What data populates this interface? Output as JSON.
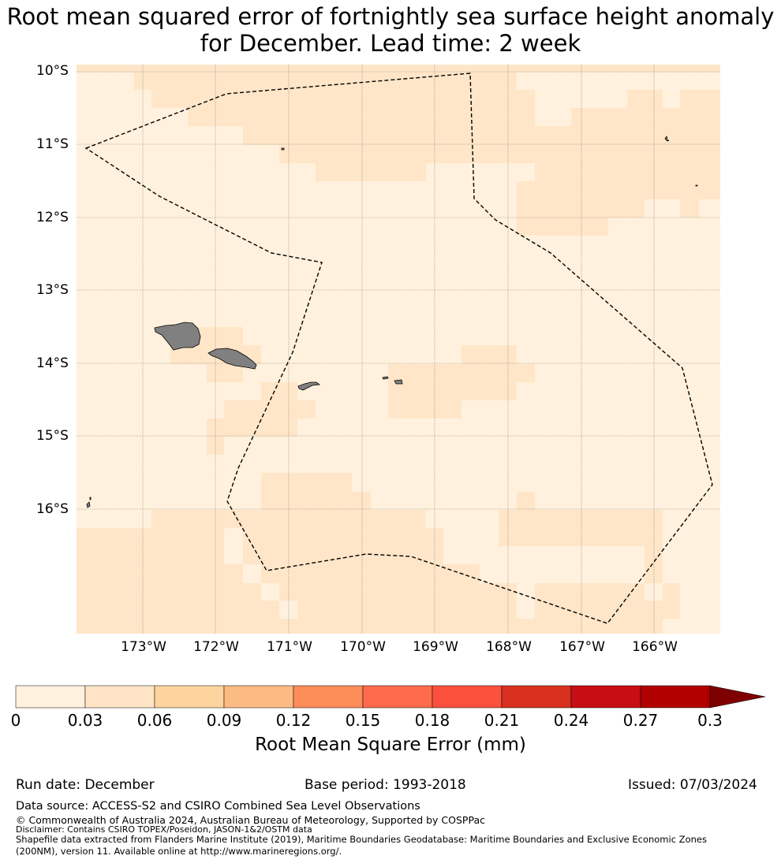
{
  "title": {
    "line1": "Root mean squared error of fortnightly sea surface height anomaly",
    "line2": "for December. Lead time: 2 week"
  },
  "map": {
    "lat_labels": [
      "10°S",
      "11°S",
      "12°S",
      "13°S",
      "14°S",
      "15°S",
      "16°S"
    ],
    "lon_labels": [
      "173°W",
      "172°W",
      "171°W",
      "170°W",
      "169°W",
      "168°W",
      "167°W",
      "166°W"
    ],
    "rmse_field_levels": [
      "0-0.03",
      "0.03-0.06"
    ],
    "islands": [
      "samoa-savaii",
      "samoa-upolu",
      "tutuila",
      "manua",
      "swains",
      "rose-atoll"
    ],
    "eez_boundary": "dashed"
  },
  "colorbar": {
    "ticks": [
      "0",
      "0.03",
      "0.06",
      "0.09",
      "0.12",
      "0.15",
      "0.18",
      "0.21",
      "0.24",
      "0.27",
      "0.3"
    ],
    "colors": [
      "#fff1dd",
      "#ffe5c6",
      "#fdd49e",
      "#fdbb84",
      "#fc8d59",
      "#fe6b4a",
      "#fb503c",
      "#d7301f",
      "#c90d14",
      "#b00000",
      "#7f0000"
    ],
    "extend": "max",
    "label": "Root Mean Square Error (mm)"
  },
  "meta": {
    "run_date": "Run date: December",
    "base_period": "Base period: 1993-2018",
    "issued": "Issued: 07/03/2024"
  },
  "footer": {
    "data_source": "Data source: ACCESS-S2 and CSIRO Combined Sea Level Observations",
    "copyright": "© Commonwealth of Australia 2024, Australian Bureau of Meteorology, Supported by COSPPac",
    "disclaimer": "Disclaimer: Contains CSIRO TOPEX/Poseidon, JASON-1&2/OSTM data",
    "shapefile_1": "Shapefile data extracted from Flanders Marine Institute (2019), Maritime Boundaries Geodatabase: Maritime Boundaries and Exclusive Economic Zones",
    "shapefile_2": "(200NM), version 11. Available online at http://www.marineregions.org/."
  }
}
